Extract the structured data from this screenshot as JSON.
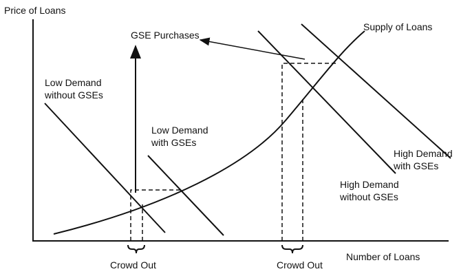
{
  "axes": {
    "y_label": "Price of Loans",
    "x_label": "Number of Loans"
  },
  "curves": {
    "supply": "Supply of Loans",
    "low_demand_without": [
      "Low Demand",
      "without GSEs"
    ],
    "low_demand_with": [
      "Low Demand",
      "with GSEs"
    ],
    "high_demand_with": [
      "High Demand",
      "with GSEs"
    ],
    "high_demand_without": [
      "High Demand",
      "without GSEs"
    ]
  },
  "annotations": {
    "gse_purchases": "GSE Purchases",
    "crowd_out": [
      "Crowd Out",
      "Crowd Out"
    ]
  }
}
